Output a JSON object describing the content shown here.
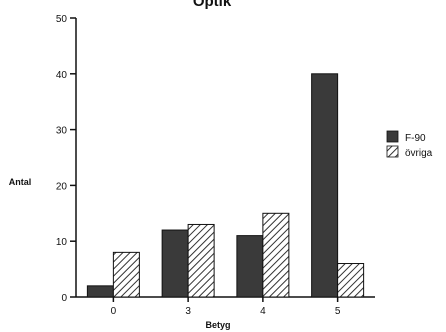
{
  "chart_data": {
    "type": "bar",
    "title": "Optik",
    "xlabel": "Betyg",
    "ylabel": "Antal",
    "categories": [
      "0",
      "3",
      "4",
      "5"
    ],
    "series": [
      {
        "name": "F-90",
        "values": [
          2,
          12,
          11,
          40
        ],
        "pattern": "solid",
        "color": "#3a3a3a"
      },
      {
        "name": "övriga",
        "values": [
          8,
          13,
          15,
          6
        ],
        "pattern": "hatch",
        "color": "#3a3a3a"
      }
    ],
    "ylim": [
      0,
      50
    ],
    "yticks": [
      0,
      10,
      20,
      30,
      40,
      50
    ],
    "grid": false,
    "legend_position": "right"
  }
}
